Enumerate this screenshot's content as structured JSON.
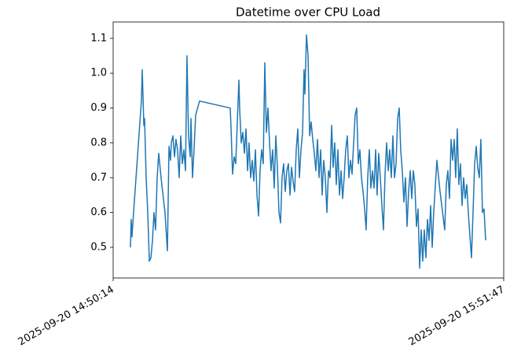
{
  "chart_data": {
    "type": "line",
    "title": "Datetime over CPU Load",
    "color": "#1f77b4",
    "xlim": [
      "2025-09-20 14:50:14",
      "2025-09-20 15:51:47"
    ],
    "xticks": [
      "2025-09-20 14:50:14",
      "2025-09-20 15:51:47"
    ],
    "ylim": [
      0.412,
      1.147
    ],
    "yticks": [
      0.5,
      0.6,
      0.7,
      0.8,
      0.9,
      {
        "value": 1,
        "label": "1.0"
      },
      1.1
    ],
    "x": [
      "2025-09-20 14:52:57",
      "2025-09-20 14:53:05",
      "2025-09-20 14:53:12",
      "2025-09-20 14:53:27",
      "2025-09-20 14:54:41",
      "2025-09-20 14:54:49",
      "2025-09-20 14:55:04",
      "2025-09-20 14:55:11",
      "2025-09-20 14:55:26",
      "2025-09-20 14:55:41",
      "2025-09-20 14:55:56",
      "2025-09-20 14:56:11",
      "2025-09-20 14:56:26",
      "2025-09-20 14:56:40",
      "2025-09-20 14:56:55",
      "2025-09-20 14:57:10",
      "2025-09-20 14:57:25",
      "2025-09-20 14:57:47",
      "2025-09-20 14:58:24",
      "2025-09-20 14:58:47",
      "2025-09-20 14:59:02",
      "2025-09-20 14:59:16",
      "2025-09-20 14:59:24",
      "2025-09-20 14:59:39",
      "2025-09-20 14:59:54",
      "2025-09-20 15:00:08",
      "2025-09-20 15:00:23",
      "2025-09-20 15:00:38",
      "2025-09-20 15:00:53",
      "2025-09-20 15:01:08",
      "2025-09-20 15:01:23",
      "2025-09-20 15:01:38",
      "2025-09-20 15:01:52",
      "2025-09-20 15:02:07",
      "2025-09-20 15:02:22",
      "2025-09-20 15:02:30",
      "2025-09-20 15:02:44",
      "2025-09-20 15:02:59",
      "2025-09-20 15:03:14",
      "2025-09-20 15:03:51",
      "2025-09-20 15:08:41",
      "2025-09-20 15:08:49",
      "2025-09-20 15:09:03",
      "2025-09-20 15:09:18",
      "2025-09-20 15:09:33",
      "2025-09-20 15:09:48",
      "2025-09-20 15:10:03",
      "2025-09-20 15:10:10",
      "2025-09-20 15:10:25",
      "2025-09-20 15:10:40",
      "2025-09-20 15:10:55",
      "2025-09-20 15:11:10",
      "2025-09-20 15:11:25",
      "2025-09-20 15:11:39",
      "2025-09-20 15:11:54",
      "2025-09-20 15:12:09",
      "2025-09-20 15:12:24",
      "2025-09-20 15:12:39",
      "2025-09-20 15:12:54",
      "2025-09-20 15:13:09",
      "2025-09-20 15:13:23",
      "2025-09-20 15:13:38",
      "2025-09-20 15:13:53",
      "2025-09-20 15:14:08",
      "2025-09-20 15:14:23",
      "2025-09-20 15:14:38",
      "2025-09-20 15:14:53",
      "2025-09-20 15:15:07",
      "2025-09-20 15:15:22",
      "2025-09-20 15:15:37",
      "2025-09-20 15:15:52",
      "2025-09-20 15:16:07",
      "2025-09-20 15:16:22",
      "2025-09-20 15:16:37",
      "2025-09-20 15:16:51",
      "2025-09-20 15:17:06",
      "2025-09-20 15:17:21",
      "2025-09-20 15:17:36",
      "2025-09-20 15:17:51",
      "2025-09-20 15:18:06",
      "2025-09-20 15:18:21",
      "2025-09-20 15:18:35",
      "2025-09-20 15:18:50",
      "2025-09-20 15:19:05",
      "2025-09-20 15:19:20",
      "2025-09-20 15:19:35",
      "2025-09-20 15:19:50",
      "2025-09-20 15:20:05",
      "2025-09-20 15:20:19",
      "2025-09-20 15:20:27",
      "2025-09-20 15:20:42",
      "2025-09-20 15:20:57",
      "2025-09-20 15:21:12",
      "2025-09-20 15:21:26",
      "2025-09-20 15:21:41",
      "2025-09-20 15:21:56",
      "2025-09-20 15:22:11",
      "2025-09-20 15:22:26",
      "2025-09-20 15:22:41",
      "2025-09-20 15:22:56",
      "2025-09-20 15:23:10",
      "2025-09-20 15:23:25",
      "2025-09-20 15:23:40",
      "2025-09-20 15:23:55",
      "2025-09-20 15:24:10",
      "2025-09-20 15:24:25",
      "2025-09-20 15:24:40",
      "2025-09-20 15:24:54",
      "2025-09-20 15:25:09",
      "2025-09-20 15:25:24",
      "2025-09-20 15:25:39",
      "2025-09-20 15:25:54",
      "2025-09-20 15:26:09",
      "2025-09-20 15:26:24",
      "2025-09-20 15:26:38",
      "2025-09-20 15:26:53",
      "2025-09-20 15:27:08",
      "2025-09-20 15:27:23",
      "2025-09-20 15:27:38",
      "2025-09-20 15:27:53",
      "2025-09-20 15:28:08",
      "2025-09-20 15:28:22",
      "2025-09-20 15:28:37",
      "2025-09-20 15:28:52",
      "2025-09-20 15:29:07",
      "2025-09-20 15:29:22",
      "2025-09-20 15:29:37",
      "2025-09-20 15:29:52",
      "2025-09-20 15:30:06",
      "2025-09-20 15:30:21",
      "2025-09-20 15:30:36",
      "2025-09-20 15:30:51",
      "2025-09-20 15:31:06",
      "2025-09-20 15:31:21",
      "2025-09-20 15:31:36",
      "2025-09-20 15:31:50",
      "2025-09-20 15:32:05",
      "2025-09-20 15:32:20",
      "2025-09-20 15:32:35",
      "2025-09-20 15:32:50",
      "2025-09-20 15:33:05",
      "2025-09-20 15:33:20",
      "2025-09-20 15:33:35",
      "2025-09-20 15:33:49",
      "2025-09-20 15:34:04",
      "2025-09-20 15:34:19",
      "2025-09-20 15:34:34",
      "2025-09-20 15:34:49",
      "2025-09-20 15:35:04",
      "2025-09-20 15:35:19",
      "2025-09-20 15:35:33",
      "2025-09-20 15:35:48",
      "2025-09-20 15:36:03",
      "2025-09-20 15:36:18",
      "2025-09-20 15:36:33",
      "2025-09-20 15:36:48",
      "2025-09-20 15:37:03",
      "2025-09-20 15:37:17",
      "2025-09-20 15:37:32",
      "2025-09-20 15:37:47",
      "2025-09-20 15:38:02",
      "2025-09-20 15:38:17",
      "2025-09-20 15:38:32",
      "2025-09-20 15:38:47",
      "2025-09-20 15:39:01",
      "2025-09-20 15:39:16",
      "2025-09-20 15:39:31",
      "2025-09-20 15:39:46",
      "2025-09-20 15:40:01",
      "2025-09-20 15:40:16",
      "2025-09-20 15:40:31",
      "2025-09-20 15:40:45",
      "2025-09-20 15:41:15",
      "2025-09-20 15:41:45",
      "2025-09-20 15:42:29",
      "2025-09-20 15:42:44",
      "2025-09-20 15:42:59",
      "2025-09-20 15:43:14",
      "2025-09-20 15:43:29",
      "2025-09-20 15:43:44",
      "2025-09-20 15:43:59",
      "2025-09-20 15:44:13",
      "2025-09-20 15:44:28",
      "2025-09-20 15:44:43",
      "2025-09-20 15:44:58",
      "2025-09-20 15:45:13",
      "2025-09-20 15:45:28",
      "2025-09-20 15:45:43",
      "2025-09-20 15:45:58",
      "2025-09-20 15:46:12",
      "2025-09-20 15:46:42",
      "2025-09-20 15:46:57",
      "2025-09-20 15:47:12",
      "2025-09-20 15:47:27",
      "2025-09-20 15:47:41",
      "2025-09-20 15:47:56",
      "2025-09-20 15:48:11",
      "2025-09-20 15:48:26",
      "2025-09-20 15:48:41",
      "2025-09-20 15:48:56"
    ],
    "values": [
      0.5,
      0.58,
      0.53,
      0.6,
      0.92,
      1.01,
      0.85,
      0.87,
      0.7,
      0.6,
      0.46,
      0.47,
      0.52,
      0.6,
      0.55,
      0.7,
      0.77,
      0.7,
      0.6,
      0.49,
      0.79,
      0.75,
      0.8,
      0.82,
      0.76,
      0.81,
      0.78,
      0.7,
      0.82,
      0.74,
      0.78,
      0.72,
      1.05,
      0.82,
      0.76,
      0.87,
      0.7,
      0.78,
      0.88,
      0.92,
      0.9,
      0.84,
      0.71,
      0.76,
      0.74,
      0.86,
      0.98,
      0.9,
      0.8,
      0.83,
      0.77,
      0.84,
      0.72,
      0.8,
      0.7,
      0.75,
      0.69,
      0.78,
      0.65,
      0.59,
      0.72,
      0.78,
      0.74,
      1.03,
      0.83,
      0.9,
      0.8,
      0.72,
      0.78,
      0.67,
      0.82,
      0.73,
      0.6,
      0.57,
      0.7,
      0.74,
      0.66,
      0.72,
      0.74,
      0.65,
      0.73,
      0.69,
      0.66,
      0.78,
      0.84,
      0.7,
      0.78,
      0.83,
      1.01,
      0.94,
      1.11,
      1.05,
      0.82,
      0.86,
      0.81,
      0.77,
      0.72,
      0.81,
      0.7,
      0.78,
      0.65,
      0.75,
      0.7,
      0.6,
      0.72,
      0.7,
      0.85,
      0.73,
      0.8,
      0.68,
      0.78,
      0.65,
      0.72,
      0.64,
      0.7,
      0.78,
      0.82,
      0.7,
      0.75,
      0.71,
      0.8,
      0.88,
      0.9,
      0.74,
      0.78,
      0.7,
      0.66,
      0.61,
      0.55,
      0.7,
      0.78,
      0.67,
      0.72,
      0.67,
      0.78,
      0.65,
      0.77,
      0.7,
      0.62,
      0.55,
      0.71,
      0.8,
      0.72,
      0.78,
      0.7,
      0.82,
      0.7,
      0.74,
      0.87,
      0.9,
      0.78,
      0.72,
      0.63,
      0.7,
      0.56,
      0.66,
      0.72,
      0.64,
      0.72,
      0.68,
      0.56,
      0.61,
      0.44,
      0.55,
      0.46,
      0.55,
      0.47,
      0.58,
      0.52,
      0.62,
      0.5,
      0.6,
      0.75,
      0.66,
      0.55,
      0.68,
      0.72,
      0.64,
      0.81,
      0.75,
      0.81,
      0.7,
      0.84,
      0.68,
      0.74,
      0.62,
      0.7,
      0.64,
      0.68,
      0.6,
      0.47,
      0.6,
      0.74,
      0.79,
      0.73,
      0.7,
      0.81,
      0.6,
      0.61,
      0.52
    ]
  }
}
